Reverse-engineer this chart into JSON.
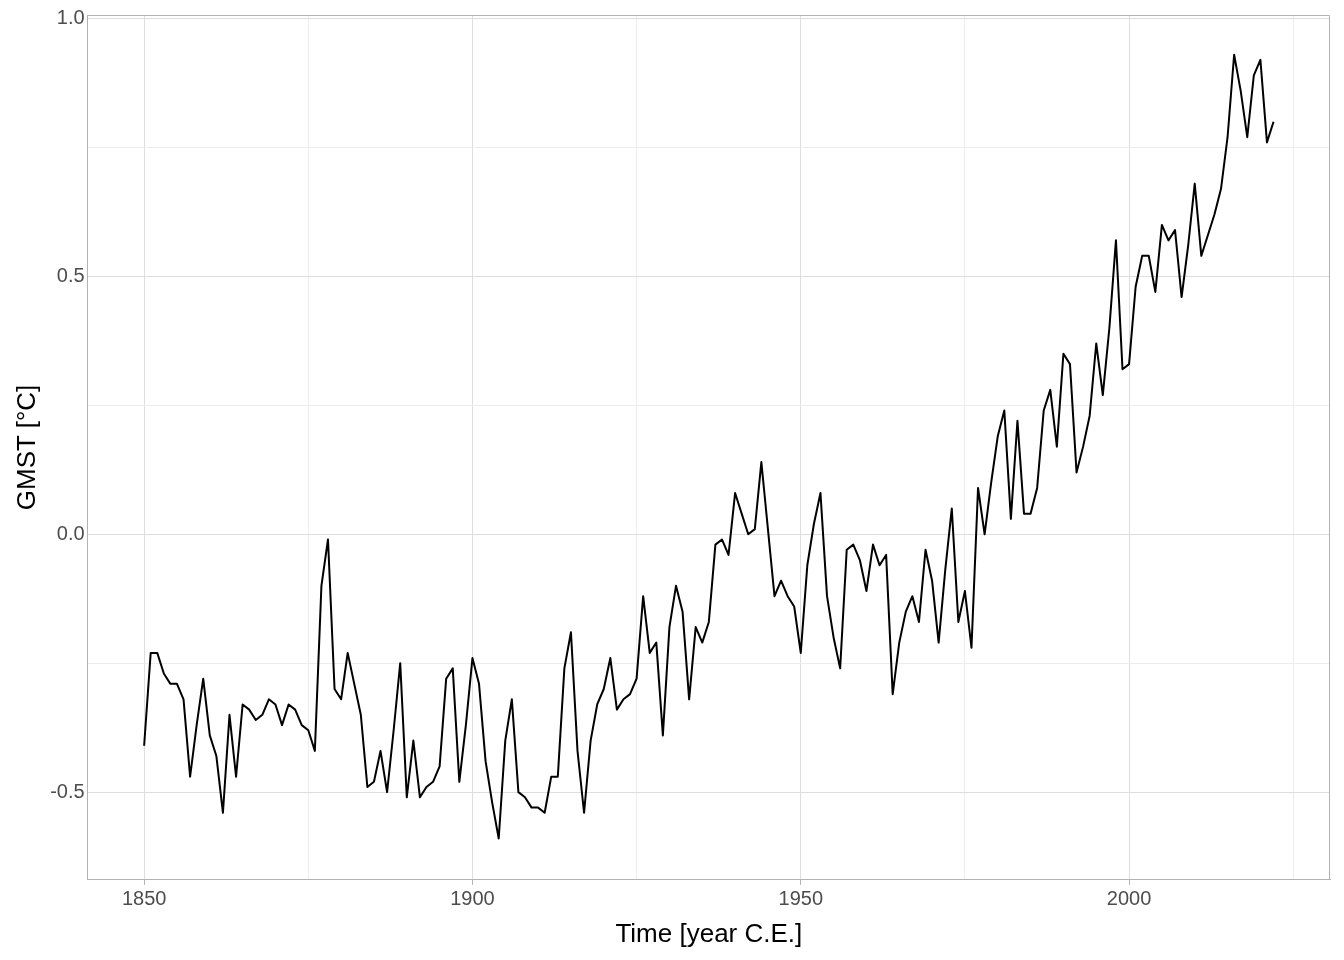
{
  "chart_data": {
    "type": "line",
    "xlabel": "Time [year C.E.]",
    "ylabel": "GMST [°C]",
    "x": [
      1850,
      1851,
      1852,
      1853,
      1854,
      1855,
      1856,
      1857,
      1858,
      1859,
      1860,
      1861,
      1862,
      1863,
      1864,
      1865,
      1866,
      1867,
      1868,
      1869,
      1870,
      1871,
      1872,
      1873,
      1874,
      1875,
      1876,
      1877,
      1878,
      1879,
      1880,
      1881,
      1882,
      1883,
      1884,
      1885,
      1886,
      1887,
      1888,
      1889,
      1890,
      1891,
      1892,
      1893,
      1894,
      1895,
      1896,
      1897,
      1898,
      1899,
      1900,
      1901,
      1902,
      1903,
      1904,
      1905,
      1906,
      1907,
      1908,
      1909,
      1910,
      1911,
      1912,
      1913,
      1914,
      1915,
      1916,
      1917,
      1918,
      1919,
      1920,
      1921,
      1922,
      1923,
      1924,
      1925,
      1926,
      1927,
      1928,
      1929,
      1930,
      1931,
      1932,
      1933,
      1934,
      1935,
      1936,
      1937,
      1938,
      1939,
      1940,
      1941,
      1942,
      1943,
      1944,
      1945,
      1946,
      1947,
      1948,
      1949,
      1950,
      1951,
      1952,
      1953,
      1954,
      1955,
      1956,
      1957,
      1958,
      1959,
      1960,
      1961,
      1962,
      1963,
      1964,
      1965,
      1966,
      1967,
      1968,
      1969,
      1970,
      1971,
      1972,
      1973,
      1974,
      1975,
      1976,
      1977,
      1978,
      1979,
      1980,
      1981,
      1982,
      1983,
      1984,
      1985,
      1986,
      1987,
      1988,
      1989,
      1990,
      1991,
      1992,
      1993,
      1994,
      1995,
      1996,
      1997,
      1998,
      1999,
      2000,
      2001,
      2002,
      2003,
      2004,
      2005,
      2006,
      2007,
      2008,
      2009,
      2010,
      2011,
      2012,
      2013,
      2014,
      2015,
      2016,
      2017,
      2018,
      2019,
      2020,
      2021,
      2022
    ],
    "series": [
      {
        "color": "#000000",
        "values": [
          -0.41,
          -0.23,
          -0.23,
          -0.27,
          -0.29,
          -0.29,
          -0.32,
          -0.47,
          -0.37,
          -0.28,
          -0.39,
          -0.43,
          -0.54,
          -0.35,
          -0.47,
          -0.33,
          -0.34,
          -0.36,
          -0.35,
          -0.32,
          -0.33,
          -0.37,
          -0.33,
          -0.34,
          -0.37,
          -0.38,
          -0.42,
          -0.1,
          -0.01,
          -0.3,
          -0.32,
          -0.23,
          -0.29,
          -0.35,
          -0.49,
          -0.48,
          -0.42,
          -0.5,
          -0.38,
          -0.25,
          -0.51,
          -0.4,
          -0.51,
          -0.49,
          -0.48,
          -0.45,
          -0.28,
          -0.26,
          -0.48,
          -0.37,
          -0.24,
          -0.29,
          -0.44,
          -0.52,
          -0.59,
          -0.4,
          -0.32,
          -0.5,
          -0.51,
          -0.53,
          -0.53,
          -0.54,
          -0.47,
          -0.47,
          -0.26,
          -0.19,
          -0.42,
          -0.54,
          -0.4,
          -0.33,
          -0.3,
          -0.24,
          -0.34,
          -0.32,
          -0.31,
          -0.28,
          -0.12,
          -0.23,
          -0.21,
          -0.39,
          -0.18,
          -0.1,
          -0.15,
          -0.32,
          -0.18,
          -0.21,
          -0.17,
          -0.02,
          -0.01,
          -0.04,
          0.08,
          0.04,
          0.0,
          0.01,
          0.14,
          0.01,
          -0.12,
          -0.09,
          -0.12,
          -0.14,
          -0.23,
          -0.06,
          0.02,
          0.08,
          -0.12,
          -0.2,
          -0.26,
          -0.03,
          -0.02,
          -0.05,
          -0.11,
          -0.02,
          -0.06,
          -0.04,
          -0.31,
          -0.21,
          -0.15,
          -0.12,
          -0.17,
          -0.03,
          -0.09,
          -0.21,
          -0.07,
          0.05,
          -0.17,
          -0.11,
          -0.22,
          0.09,
          0.0,
          0.1,
          0.19,
          0.24,
          0.03,
          0.22,
          0.04,
          0.04,
          0.09,
          0.24,
          0.28,
          0.17,
          0.35,
          0.33,
          0.12,
          0.17,
          0.23,
          0.37,
          0.27,
          0.4,
          0.57,
          0.32,
          0.33,
          0.48,
          0.54,
          0.54,
          0.47,
          0.6,
          0.57,
          0.59,
          0.46,
          0.56,
          0.68,
          0.54,
          0.58,
          0.62,
          0.67,
          0.77,
          0.93,
          0.86,
          0.77,
          0.89,
          0.92,
          0.76,
          0.8
        ]
      }
    ],
    "xlim": [
      1841.4,
      2030.6
    ],
    "xticks": [
      1850,
      {
        "value": 1875,
        "label": null
      },
      1900,
      {
        "value": 1925,
        "label": null
      },
      1950,
      {
        "value": 1975,
        "label": null
      },
      2000,
      {
        "value": 2025,
        "label": null
      }
    ],
    "ylim": [
      -0.67,
      1.007
    ],
    "yticks": [
      {
        "value": -0.5,
        "label": "-0.5"
      },
      {
        "value": -0.25,
        "label": null
      },
      {
        "value": 0,
        "label": "0.0"
      },
      {
        "value": 0.25,
        "label": null
      },
      {
        "value": 0.5,
        "label": "0.5"
      },
      {
        "value": 0.75,
        "label": null
      },
      {
        "value": 1,
        "label": "1.0"
      }
    ],
    "grid": true,
    "legend": false,
    "marker": "none",
    "line_style": "solid"
  }
}
